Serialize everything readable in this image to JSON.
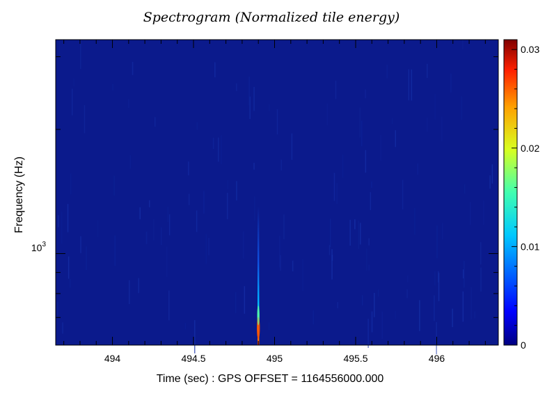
{
  "chart_data": {
    "type": "heatmap",
    "title": "Spectrogram (Normalized tile energy)",
    "xlabel": "Time (sec) : GPS OFFSET = 1164556000.000",
    "ylabel": "Frequency (Hz)",
    "xlim": [
      493.65,
      496.38
    ],
    "x_ticks": [
      "494",
      "494.5",
      "495",
      "495.5",
      "496"
    ],
    "x_tick_values": [
      494,
      494.5,
      495,
      495.5,
      496
    ],
    "y_scale": "log",
    "ylim": [
      600,
      3300
    ],
    "y_tick_label_base": "10",
    "y_tick_label_exp": "3",
    "y_tick_value": 1000,
    "colorbar": {
      "range": [
        0,
        0.031
      ],
      "ticks": [
        "0",
        "0.01",
        "0.02",
        "0.03"
      ],
      "tick_values": [
        0,
        0.01,
        0.02,
        0.03
      ],
      "colormap": "jet"
    },
    "feature": {
      "time": 494.9,
      "freq_range": [
        600,
        1300
      ],
      "peak_energy": 0.031,
      "peak_freq": 640
    },
    "background_color": "#0b1a8c"
  }
}
